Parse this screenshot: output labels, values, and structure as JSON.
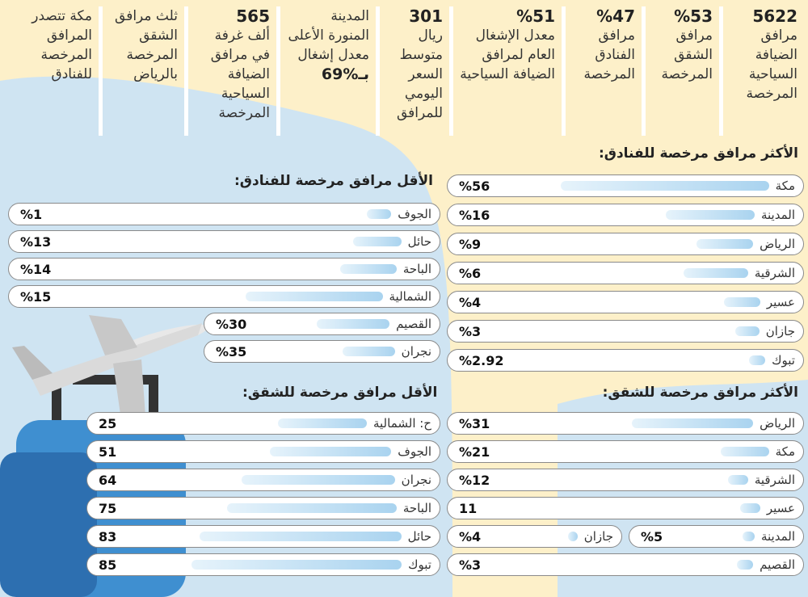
{
  "stats": [
    {
      "number": "5622",
      "text": "مرافق الضيافة السياحية المرخصة"
    },
    {
      "number": "%53",
      "text": "مرافق الشقق المرخصة"
    },
    {
      "number": "%47",
      "text": "مرافق الفنادق المرخصة"
    },
    {
      "number": "%51",
      "text": "معدل الإشغال العام لمرافق الضيافة السياحية"
    },
    {
      "number": "301",
      "text": "ريال متوسط السعر اليومي للمرافق"
    },
    {
      "text": "المدينة المنورة الأعلى معدل إشغال",
      "highlight": "بـ%69"
    },
    {
      "number": "565",
      "text": "ألف غرفة في مرافق الضيافة السياحية المرخصة"
    },
    {
      "text": "ثلث مرافق الشقق المرخصة بالرياض"
    },
    {
      "text": "مكة تتصدر المرافق المرخصة للفنادق"
    }
  ],
  "hotels_most": {
    "title": "الأكثر مرافق مرخصة للفنادق:",
    "rows": [
      {
        "name": "مكة",
        "value": "%56"
      },
      {
        "name": "المدينة",
        "value": "%16"
      },
      {
        "name": "الرياض",
        "value": "%9"
      },
      {
        "name": "الشرقية",
        "value": "%6"
      },
      {
        "name": "عسير",
        "value": "%4"
      },
      {
        "name": "جازان",
        "value": "%3"
      },
      {
        "name": "تبوك",
        "value": "%2.92"
      }
    ]
  },
  "hotels_least": {
    "title": "الأقل مرافق مرخصة للفنادق:",
    "rows": [
      {
        "name": "الجوف",
        "value": "%1"
      },
      {
        "name": "حائل",
        "value": "%13"
      },
      {
        "name": "الباحة",
        "value": "%14"
      },
      {
        "name": "الشمالية",
        "value": "%15"
      },
      {
        "name": "القصيم",
        "value": "%30"
      },
      {
        "name": "نجران",
        "value": "%35"
      }
    ]
  },
  "apartments_most": {
    "title": "الأكثر مرافق مرخصة للشقق:",
    "rows": [
      {
        "name": "الرياض",
        "value": "%31"
      },
      {
        "name": "مكة",
        "value": "%21"
      },
      {
        "name": "الشرقية",
        "value": "%12"
      },
      {
        "name": "عسير",
        "value": "11"
      },
      {
        "name": "المدينة",
        "value": "%5"
      },
      {
        "name": "جازان",
        "value": "%4"
      },
      {
        "name": "القصيم",
        "value": "%3"
      }
    ]
  },
  "apartments_least": {
    "title": "الأقل مرافق مرخصة للشقق:",
    "rows": [
      {
        "name": "ح: الشمالية",
        "value": "25"
      },
      {
        "name": "الجوف",
        "value": "51"
      },
      {
        "name": "نجران",
        "value": "64"
      },
      {
        "name": "الباحة",
        "value": "75"
      },
      {
        "name": "حائل",
        "value": "83"
      },
      {
        "name": "تبوك",
        "value": "85"
      }
    ]
  }
}
